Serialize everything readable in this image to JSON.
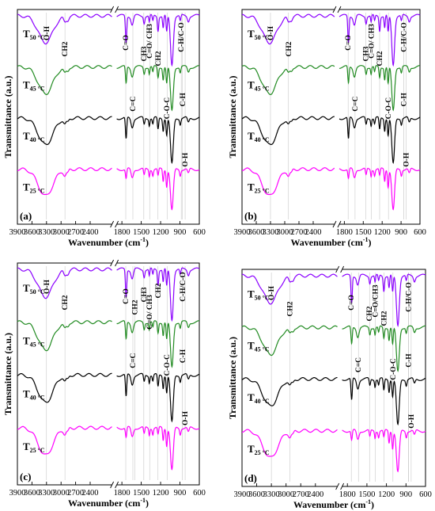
{
  "figure": {
    "y_axis_label": "Transmittance (a.u.)",
    "x_axis_label": "Wavenumber (cm",
    "x_axis_unit_sup": "-1",
    "x_axis_close": ")"
  },
  "chart_data": [
    {
      "panel_label": "(a)",
      "type": "line",
      "xlabel": "Wavenumber (cm-1)",
      "ylabel": "Transmittance (a.u.)",
      "xlim": [
        3900,
        600
      ],
      "x_break": [
        1950,
        1880
      ],
      "x_ticks": [
        "3900",
        "3600",
        "3300",
        "3000",
        "2700",
        "2400",
        "1800",
        "1500",
        "1200",
        "900",
        "600"
      ],
      "series": [
        {
          "name": "T50 °C",
          "label_main": "T",
          "label_sub": "50 °C",
          "color": "#8b00ff",
          "offset": 3
        },
        {
          "name": "T45 °C",
          "label_main": "T",
          "label_sub": "45 °C",
          "color": "#228b22",
          "offset": 2
        },
        {
          "name": "T40 °C",
          "label_main": "T",
          "label_sub": "40 °C",
          "color": "#000000",
          "offset": 1
        },
        {
          "name": "T25 °C",
          "label_main": "T",
          "label_sub": "25 °C",
          "color": "#ff00ff",
          "offset": 0
        }
      ],
      "annotations": [
        "O-H",
        "CH2",
        "C=O",
        "CH3",
        "C=O/ CH3",
        "CH2",
        "C-H/C-O",
        "C=C",
        "C-O-C",
        "C-H",
        "O-H"
      ]
    },
    {
      "panel_label": "(b)",
      "type": "line",
      "xlabel": "Wavenumber (cm-1)",
      "ylabel": "Transmittance (a.u.)",
      "xlim": [
        3900,
        600
      ],
      "x_break": [
        1950,
        1880
      ],
      "x_ticks": [
        "3900",
        "3600",
        "3300",
        "3000",
        "2700",
        "2400",
        "1800",
        "1500",
        "1200",
        "900",
        "600"
      ],
      "series": [
        {
          "name": "T50 °C",
          "label_main": "T",
          "label_sub": "50 °C",
          "color": "#8b00ff",
          "offset": 3
        },
        {
          "name": "T45 °C",
          "label_main": "T",
          "label_sub": "45 °C",
          "color": "#228b22",
          "offset": 2
        },
        {
          "name": "T40 °C",
          "label_main": "T",
          "label_sub": "40 °C",
          "color": "#000000",
          "offset": 1
        },
        {
          "name": "T25 °C",
          "label_main": "T",
          "label_sub": "25 °C",
          "color": "#ff00ff",
          "offset": 0
        }
      ],
      "annotations": [
        "O-H",
        "CH2",
        "C=O",
        "CH3",
        "C=O/ CH3",
        "CH2",
        "C-H/C-O",
        "C=C",
        "C-O-C",
        "C-H",
        "O-H"
      ]
    },
    {
      "panel_label": "(c)",
      "type": "line",
      "xlabel": "Wavenumber (cm-1)",
      "ylabel": "Transmittance (a.u.)",
      "xlim": [
        3900,
        600
      ],
      "x_break": [
        1950,
        1880
      ],
      "x_ticks": [
        "3900",
        "3600",
        "3300",
        "3000",
        "2700",
        "2400",
        "1800",
        "1500",
        "1200",
        "900",
        "600"
      ],
      "series": [
        {
          "name": "T50 °C",
          "label_main": "T",
          "label_sub": "50 °C",
          "color": "#8b00ff",
          "offset": 3
        },
        {
          "name": "T45 °C",
          "label_main": "T",
          "label_sub": "45 °C",
          "color": "#228b22",
          "offset": 2
        },
        {
          "name": "T40 °C",
          "label_main": "T",
          "label_sub": "40 °C",
          "color": "#000000",
          "offset": 1
        },
        {
          "name": "T25 °C",
          "label_main": "T",
          "label_sub": "25 °C",
          "color": "#ff00ff",
          "offset": 0
        }
      ],
      "annotations": [
        "O-H",
        "CH2",
        "C=O",
        "CH2",
        "CH3",
        "C=O/ CH3",
        "CH2",
        "C-H/C-O",
        "C=C",
        "C-O-C",
        "C-H",
        "O-H"
      ]
    },
    {
      "panel_label": "(d)",
      "type": "line",
      "xlabel": "Wavenumber (cm-1)",
      "ylabel": "Transmittance (a.u.)",
      "xlim": [
        3900,
        600
      ],
      "x_break": [
        1950,
        1880
      ],
      "x_ticks": [
        "3900",
        "3600",
        "3300",
        "3000",
        "2700",
        "2400",
        "1800",
        "1500",
        "1200",
        "900",
        "600"
      ],
      "series": [
        {
          "name": "T50 °C",
          "label_main": "T",
          "label_sub": "50 °C",
          "color": "#8b00ff",
          "offset": 3
        },
        {
          "name": "T45 °C",
          "label_main": "T",
          "label_sub": "45 °C",
          "color": "#228b22",
          "offset": 2
        },
        {
          "name": "T40 °C",
          "label_main": "T",
          "label_sub": "40 °C",
          "color": "#000000",
          "offset": 1
        },
        {
          "name": "T25 °C",
          "label_main": "T",
          "label_sub": "25 °C",
          "color": "#ff00ff",
          "offset": 0
        }
      ],
      "annotations": [
        "O-H",
        "CH2",
        "C=O",
        "CH2",
        "C=O/CH3",
        "CH2",
        "C-H/C-O",
        "C=C",
        "C-O-C",
        "C-H",
        "O-H"
      ]
    }
  ]
}
